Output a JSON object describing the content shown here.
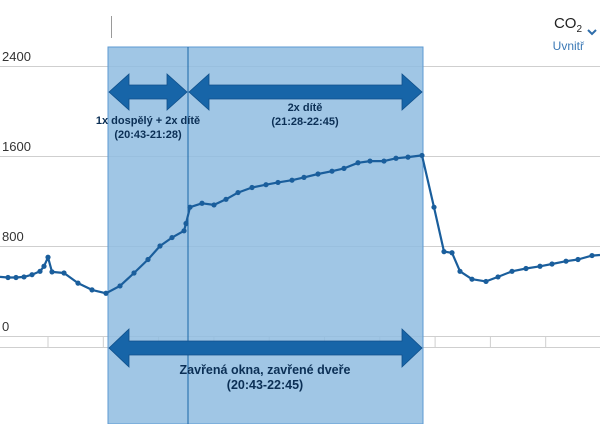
{
  "metric": {
    "name": "CO",
    "subscript": "2",
    "location": "Uvnitř",
    "dropdown_icon": "chevron-down-icon"
  },
  "colors": {
    "line": "#1a5e9c",
    "highlight_fill": "#8fbce0",
    "arrow": "#1765a8",
    "grid": "#cfcfcf",
    "accent": "#2f6eab"
  },
  "annotations": {
    "phase1_label": "1x dospělý + 2x dítě",
    "phase1_time": "(20:43-21:28)",
    "phase2_label": "2x dítě",
    "phase2_time": "(21:28-22:45)",
    "closed_label": "Zavřená okna, zavřené dveře",
    "closed_time": "(20:43-22:45)"
  },
  "chart_data": {
    "type": "line",
    "title": "",
    "xlabel": "",
    "ylabel": "",
    "ylim": [
      0,
      2400
    ],
    "yticks": [
      0,
      800,
      1600,
      2400
    ],
    "grid": true,
    "series": [
      {
        "values": [
          {
            "x": 0,
            "y": 525
          },
          {
            "x": 8,
            "y": 520
          },
          {
            "x": 16,
            "y": 520
          },
          {
            "x": 24,
            "y": 525
          },
          {
            "x": 32,
            "y": 545
          },
          {
            "x": 40,
            "y": 575
          },
          {
            "x": 44,
            "y": 620
          },
          {
            "x": 48,
            "y": 700
          },
          {
            "x": 52,
            "y": 570
          },
          {
            "x": 64,
            "y": 560
          },
          {
            "x": 78,
            "y": 470
          },
          {
            "x": 92,
            "y": 410
          },
          {
            "x": 106,
            "y": 380
          },
          {
            "x": 120,
            "y": 445
          },
          {
            "x": 134,
            "y": 560
          },
          {
            "x": 148,
            "y": 680
          },
          {
            "x": 160,
            "y": 800
          },
          {
            "x": 172,
            "y": 875
          },
          {
            "x": 184,
            "y": 935
          },
          {
            "x": 186,
            "y": 1000
          },
          {
            "x": 190,
            "y": 1145
          },
          {
            "x": 202,
            "y": 1180
          },
          {
            "x": 214,
            "y": 1165
          },
          {
            "x": 226,
            "y": 1215
          },
          {
            "x": 238,
            "y": 1275
          },
          {
            "x": 252,
            "y": 1320
          },
          {
            "x": 266,
            "y": 1345
          },
          {
            "x": 278,
            "y": 1365
          },
          {
            "x": 292,
            "y": 1385
          },
          {
            "x": 304,
            "y": 1410
          },
          {
            "x": 318,
            "y": 1440
          },
          {
            "x": 332,
            "y": 1465
          },
          {
            "x": 344,
            "y": 1490
          },
          {
            "x": 358,
            "y": 1540
          },
          {
            "x": 370,
            "y": 1555
          },
          {
            "x": 384,
            "y": 1555
          },
          {
            "x": 396,
            "y": 1580
          },
          {
            "x": 408,
            "y": 1590
          },
          {
            "x": 422,
            "y": 1605
          },
          {
            "x": 434,
            "y": 1145
          },
          {
            "x": 444,
            "y": 750
          },
          {
            "x": 452,
            "y": 740
          },
          {
            "x": 460,
            "y": 575
          },
          {
            "x": 472,
            "y": 505
          },
          {
            "x": 486,
            "y": 485
          },
          {
            "x": 498,
            "y": 525
          },
          {
            "x": 512,
            "y": 575
          },
          {
            "x": 526,
            "y": 600
          },
          {
            "x": 540,
            "y": 620
          },
          {
            "x": 552,
            "y": 640
          },
          {
            "x": 566,
            "y": 665
          },
          {
            "x": 578,
            "y": 680
          },
          {
            "x": 592,
            "y": 715
          },
          {
            "x": 600,
            "y": 720
          }
        ]
      }
    ]
  }
}
